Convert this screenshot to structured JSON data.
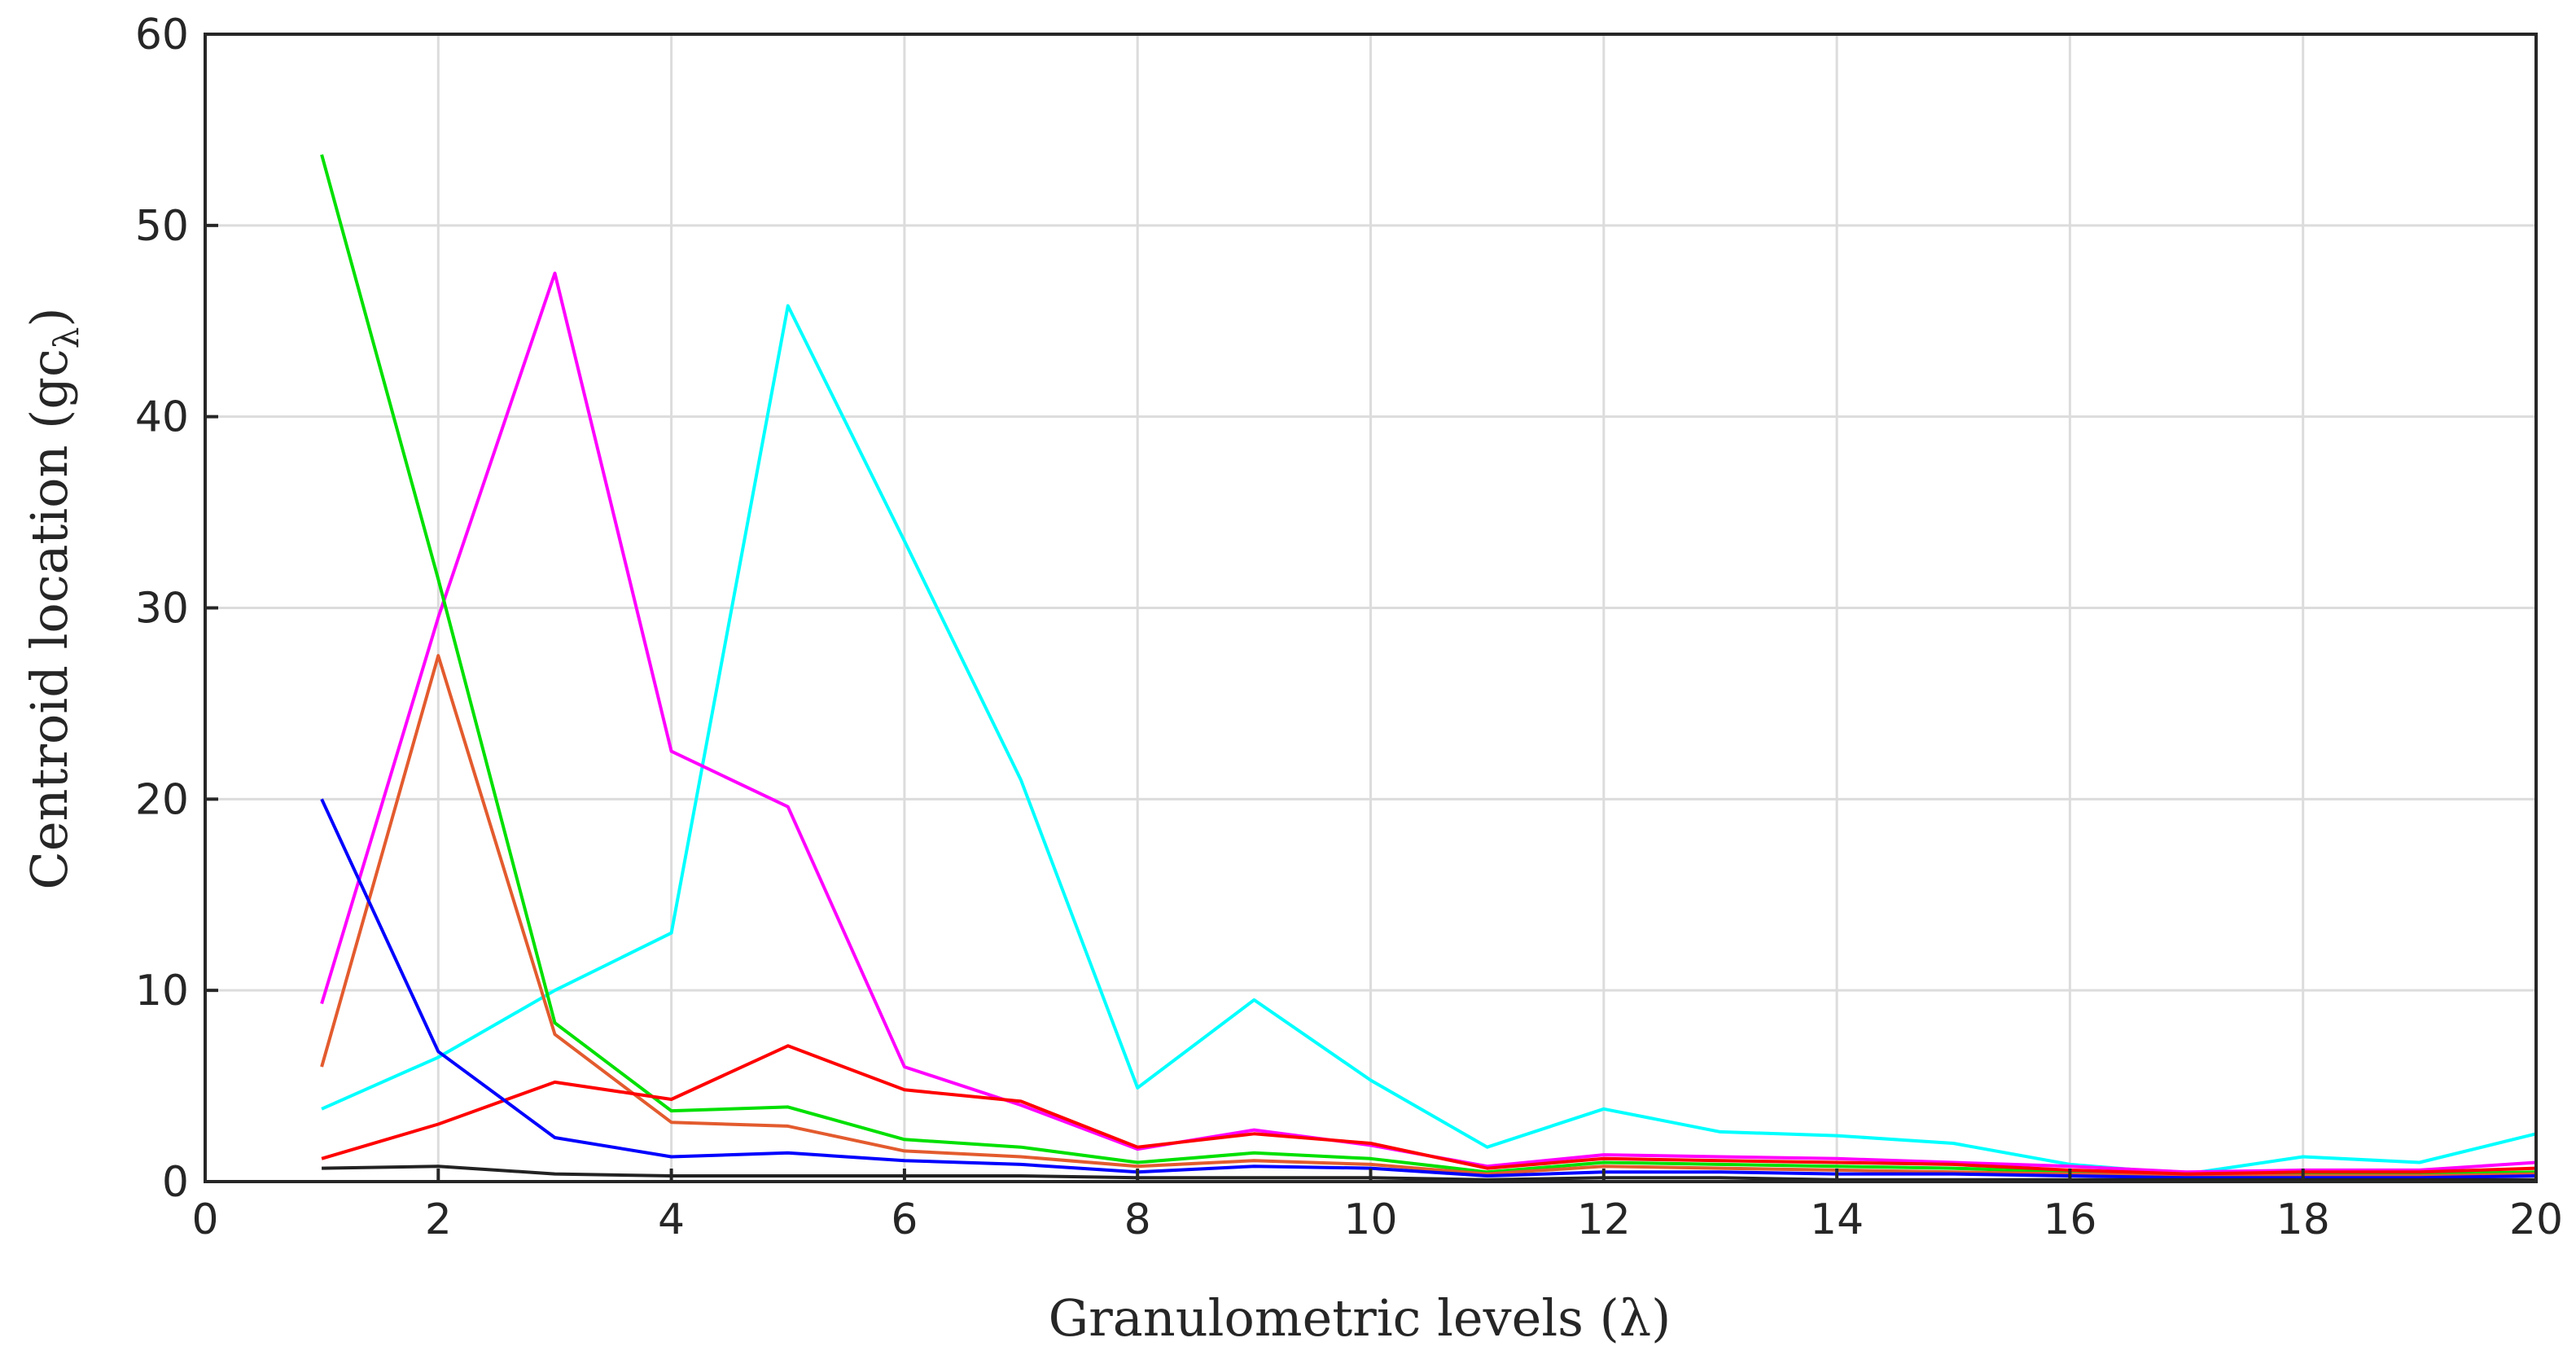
{
  "chart_data": {
    "type": "line",
    "title": "",
    "xlabel": "Granulometric levels (λ)",
    "ylabel_main": "Centroid location (gc",
    "ylabel_sub": "λ",
    "ylabel_close": ")",
    "xlim": [
      0,
      20
    ],
    "ylim": [
      0,
      60
    ],
    "xticks": [
      "0",
      "2",
      "4",
      "6",
      "8",
      "10",
      "12",
      "14",
      "16",
      "18",
      "20"
    ],
    "yticks": [
      "0",
      "10",
      "20",
      "30",
      "40",
      "50",
      "60"
    ],
    "grid": true,
    "x": [
      1,
      2,
      3,
      4,
      5,
      6,
      7,
      8,
      9,
      10,
      11,
      12,
      13,
      14,
      15,
      16,
      17,
      18,
      19,
      20
    ],
    "series": [
      {
        "color": "#00ffff",
        "values": [
          3.8,
          6.5,
          10.0,
          13.0,
          45.8,
          33.5,
          21.0,
          4.9,
          9.5,
          5.3,
          1.8,
          3.8,
          2.6,
          2.4,
          2.0,
          0.9,
          0.4,
          1.3,
          1.0,
          2.5
        ]
      },
      {
        "color": "#ff00ff",
        "values": [
          9.3,
          29.5,
          47.5,
          22.5,
          19.6,
          6.0,
          4.0,
          1.7,
          2.7,
          1.9,
          0.8,
          1.4,
          1.3,
          1.2,
          1.0,
          0.8,
          0.5,
          0.6,
          0.6,
          1.0
        ]
      },
      {
        "color": "#00e000",
        "values": [
          53.7,
          31.5,
          8.3,
          3.7,
          3.9,
          2.2,
          1.8,
          1.0,
          1.5,
          1.2,
          0.5,
          1.0,
          0.9,
          0.8,
          0.7,
          0.5,
          0.4,
          0.4,
          0.4,
          0.5
        ]
      },
      {
        "color": "#e35b2e",
        "values": [
          6.0,
          27.5,
          7.7,
          3.1,
          2.9,
          1.6,
          1.3,
          0.8,
          1.1,
          0.9,
          0.4,
          0.8,
          0.7,
          0.6,
          0.5,
          0.4,
          0.3,
          0.3,
          0.3,
          0.4
        ]
      },
      {
        "color": "#ff0000",
        "values": [
          1.2,
          3.0,
          5.2,
          4.3,
          7.1,
          4.8,
          4.2,
          1.8,
          2.5,
          2.0,
          0.7,
          1.2,
          1.1,
          1.0,
          0.9,
          0.6,
          0.4,
          0.5,
          0.5,
          0.7
        ]
      },
      {
        "color": "#0000ff",
        "values": [
          20.0,
          6.8,
          2.3,
          1.3,
          1.5,
          1.1,
          0.9,
          0.5,
          0.8,
          0.7,
          0.3,
          0.5,
          0.5,
          0.4,
          0.4,
          0.3,
          0.2,
          0.2,
          0.2,
          0.3
        ]
      },
      {
        "color": "#222222",
        "values": [
          0.7,
          0.8,
          0.4,
          0.3,
          0.3,
          0.3,
          0.3,
          0.2,
          0.2,
          0.2,
          0.1,
          0.2,
          0.2,
          0.1,
          0.1,
          0.1,
          0.1,
          0.1,
          0.1,
          0.1
        ]
      }
    ]
  }
}
